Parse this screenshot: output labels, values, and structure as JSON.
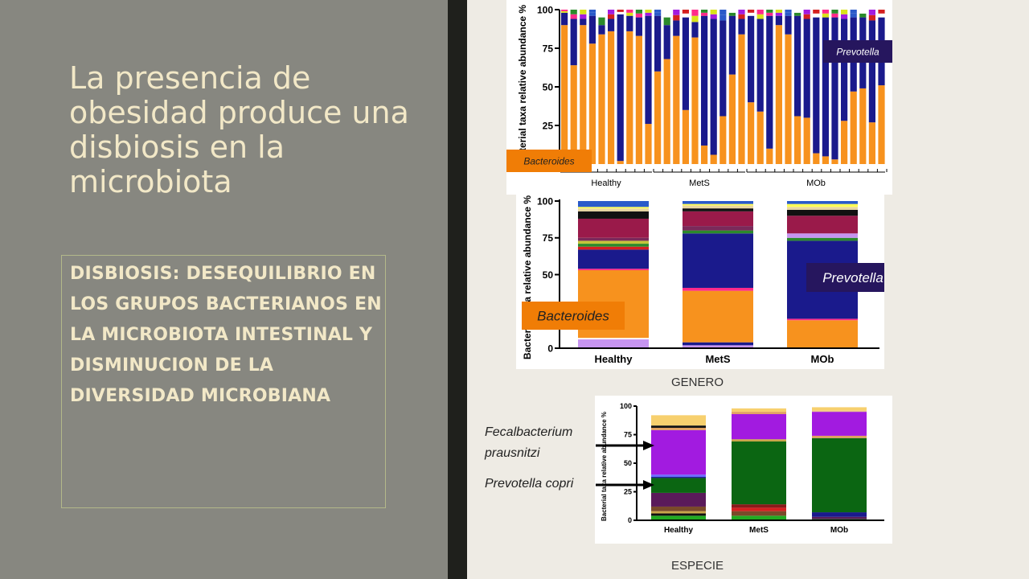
{
  "slide": {
    "title": "La presencia de obesidad produce una disbiosis en la microbiota",
    "body": "DISBIOSIS: DESEQUILIBRIO EN LOS GRUPOS BACTERIANOS EN LA MICROBIOTA INTESTINAL Y DISMINUCION DE LA DIVERSIDAD MICROBIANA",
    "caption_genus": "GENERO",
    "caption_species": "ESPECIE",
    "annotation_faecalibacterium_1": "Fecalbacterium",
    "annotation_faecalibacterium_2": "prausnitzi",
    "annotation_prevotella_copri": "Prevotella copri"
  },
  "colors": {
    "bacteroides": "#f7921e",
    "prevotella": "#1a1a8c",
    "faecalibacterium": "#a21be0",
    "prevotella_copri": "#0b6612"
  },
  "chart_data": [
    {
      "type": "bar",
      "stacked": true,
      "title": "",
      "ylabel": "Bacterial taxa relative abundance %",
      "ylim": [
        0,
        100
      ],
      "yticks": [
        "100",
        "75",
        "50",
        "25"
      ],
      "groups": [
        "Healthy",
        "MetS",
        "MOb"
      ],
      "samples_per_group": [
        10,
        10,
        15
      ],
      "bacteroides_series_name": "Bacteroides",
      "bacteroides": [
        90,
        64,
        90,
        78,
        84,
        86,
        2,
        86,
        83,
        26,
        60,
        68,
        83,
        35,
        82,
        12,
        6,
        31,
        58,
        84,
        40,
        34,
        10,
        90,
        84,
        31,
        30,
        7,
        5,
        3,
        28,
        47,
        49,
        27,
        51
      ],
      "prevotella_series_name": "Prevotella",
      "prevotella": [
        8,
        30,
        4,
        18,
        6,
        8,
        95,
        10,
        12,
        70,
        36,
        22,
        10,
        60,
        10,
        84,
        88,
        62,
        38,
        10,
        56,
        60,
        86,
        6,
        12,
        65,
        64,
        88,
        90,
        92,
        66,
        48,
        46,
        66,
        44
      ],
      "labels": [
        "Bacteroides",
        "Prevotella"
      ]
    },
    {
      "type": "bar",
      "stacked": true,
      "title": "",
      "ylabel": "Bacterial taxa relative abundance %",
      "ylim": [
        0,
        100
      ],
      "yticks": [
        "100",
        "75",
        "50",
        "25",
        "0"
      ],
      "categories": [
        "Healthy",
        "MetS",
        "MOb"
      ],
      "labels": [
        "Bacteroides",
        "Prevotella"
      ],
      "stacks": [
        [
          [
            "#c694f0",
            6
          ],
          [
            "#ffffff",
            1
          ],
          [
            "#f7921e",
            46
          ],
          [
            "#ff2a8a",
            1
          ],
          [
            "#1a1a8c",
            13
          ],
          [
            "#d42020",
            2
          ],
          [
            "#2b8a2b",
            2
          ],
          [
            "#c4c43a",
            2
          ],
          [
            "#7a2a5a",
            2
          ],
          [
            "#9a1a4a",
            13
          ],
          [
            "#111111",
            5
          ],
          [
            "#e8d6a0",
            2
          ],
          [
            "#ffff55",
            1
          ],
          [
            "#2a5ac9",
            4
          ]
        ],
        [
          [
            "#c694f0",
            2
          ],
          [
            "#1a1a8c",
            2
          ],
          [
            "#f7921e",
            35
          ],
          [
            "#ff2a8a",
            2
          ],
          [
            "#1a1a8c",
            37
          ],
          [
            "#2b8a2b",
            2
          ],
          [
            "#7a2a5a",
            3
          ],
          [
            "#9a1a4a",
            10
          ],
          [
            "#111111",
            2
          ],
          [
            "#e8d6a0",
            2
          ],
          [
            "#ffff55",
            1
          ],
          [
            "#2a5ac9",
            2
          ]
        ],
        [
          [
            "#f7921e",
            19
          ],
          [
            "#ff2a8a",
            1
          ],
          [
            "#1a1a8c",
            53
          ],
          [
            "#2b8a2b",
            2
          ],
          [
            "#c694f0",
            3
          ],
          [
            "#9a1a4a",
            12
          ],
          [
            "#111111",
            4
          ],
          [
            "#e8d6a0",
            2
          ],
          [
            "#ffff55",
            2
          ],
          [
            "#2a5ac9",
            2
          ]
        ]
      ]
    },
    {
      "type": "bar",
      "stacked": true,
      "title": "",
      "ylabel": "Bacterial taxa relative abundance %",
      "ylim": [
        0,
        100
      ],
      "yticks": [
        "100",
        "75",
        "50",
        "25",
        "0"
      ],
      "categories": [
        "Healthy",
        "MetS",
        "MOb"
      ],
      "stacks": [
        [
          [
            "#22aa22",
            4
          ],
          [
            "#111111",
            2
          ],
          [
            "#c9a54a",
            2
          ],
          [
            "#7a4a2a",
            4
          ],
          [
            "#5a1a5a",
            12
          ],
          [
            "#0b6612",
            13
          ],
          [
            "#1a1a8c",
            1
          ],
          [
            "#6a6aff",
            2
          ],
          [
            "#a21be0",
            39
          ],
          [
            "#e0a060",
            2
          ],
          [
            "#111111",
            2
          ],
          [
            "#f7d06e",
            9
          ]
        ],
        [
          [
            "#22aa22",
            4
          ],
          [
            "#7a4a2a",
            4
          ],
          [
            "#d42020",
            3
          ],
          [
            "#8a1a1a",
            3
          ],
          [
            "#0b6612",
            55
          ],
          [
            "#c9a54a",
            2
          ],
          [
            "#a21be0",
            22
          ],
          [
            "#e0a060",
            2
          ],
          [
            "#f7d06e",
            3
          ]
        ],
        [
          [
            "#22aa22",
            1
          ],
          [
            "#5a1a5a",
            2
          ],
          [
            "#1a1a8c",
            4
          ],
          [
            "#0b6612",
            65
          ],
          [
            "#e0a060",
            2
          ],
          [
            "#a21be0",
            21
          ],
          [
            "#e8c090",
            1
          ],
          [
            "#f7d06e",
            3
          ]
        ]
      ]
    }
  ]
}
